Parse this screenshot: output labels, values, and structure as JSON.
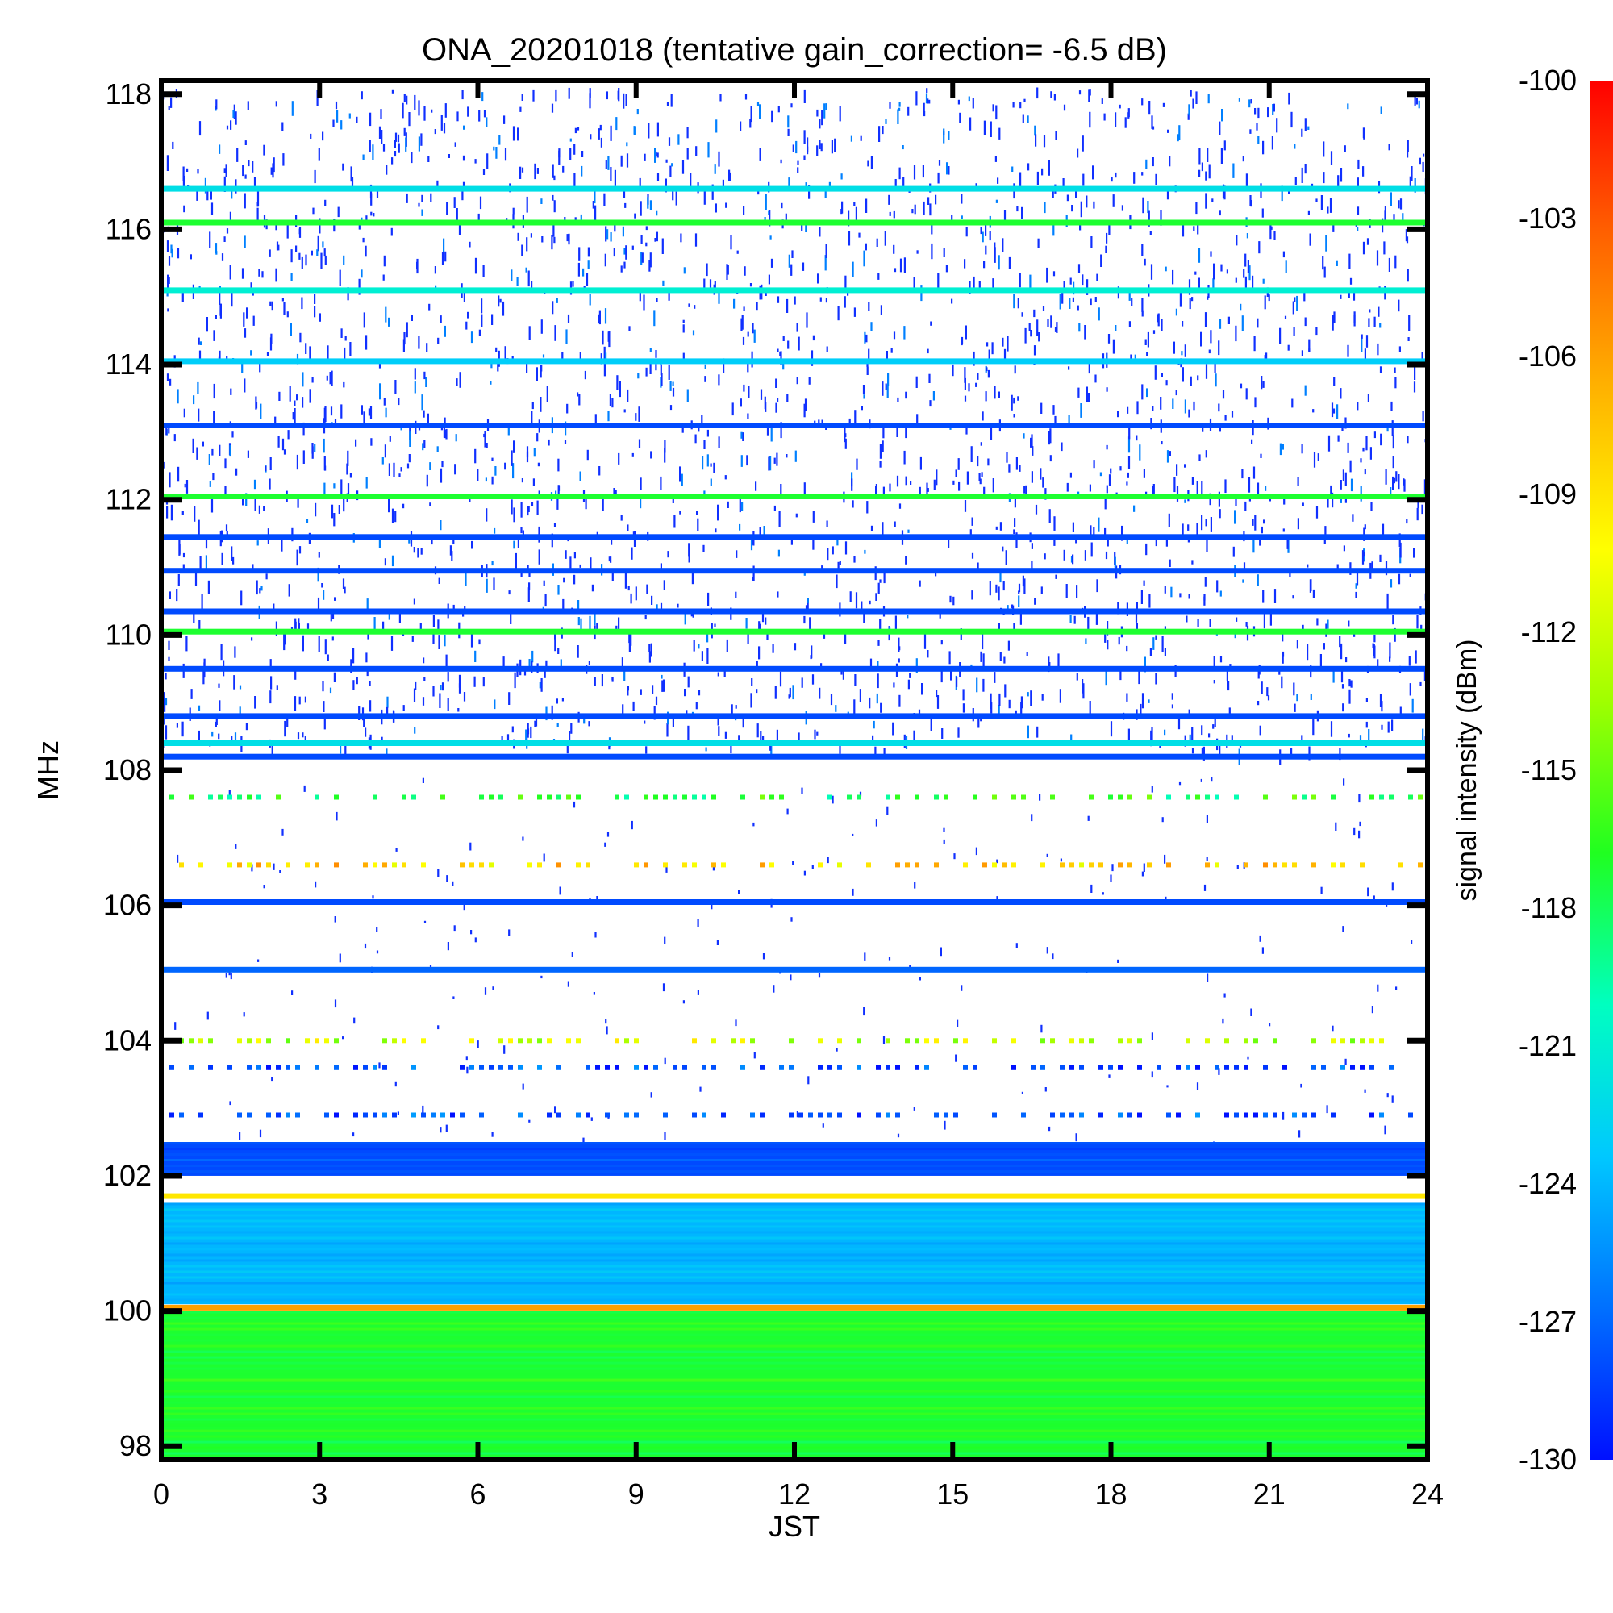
{
  "chart_data": {
    "type": "heatmap",
    "title": "ONA_20201018 (tentative gain_correction= -6.5 dB)",
    "xlabel": "JST",
    "ylabel": "MHz",
    "xlim": [
      0,
      24
    ],
    "ylim": [
      97.8,
      118.2
    ],
    "x_ticks": [
      "0",
      "3",
      "6",
      "9",
      "12",
      "15",
      "18",
      "21",
      "24"
    ],
    "y_ticks": [
      "98",
      "100",
      "102",
      "104",
      "106",
      "108",
      "110",
      "112",
      "114",
      "116",
      "118"
    ],
    "colorbar": {
      "label": "signal intensity (dBm)",
      "range": [
        -130,
        -100
      ],
      "ticks": [
        "-100",
        "-103",
        "-106",
        "-109",
        "-112",
        "-115",
        "-118",
        "-121",
        "-124",
        "-127",
        "-130"
      ],
      "colors": [
        "#0010ff",
        "#0070ff",
        "#00c8ff",
        "#00ffc0",
        "#20ff20",
        "#a0ff00",
        "#ffff00",
        "#ffb000",
        "#ff6000",
        "#ff0000"
      ]
    },
    "persistent_signals": [
      {
        "freq_mhz": 116.6,
        "dbm": -122
      },
      {
        "freq_mhz": 116.1,
        "dbm": -117
      },
      {
        "freq_mhz": 115.1,
        "dbm": -121
      },
      {
        "freq_mhz": 114.05,
        "dbm": -123
      },
      {
        "freq_mhz": 113.1,
        "dbm": -128
      },
      {
        "freq_mhz": 112.05,
        "dbm": -117
      },
      {
        "freq_mhz": 111.45,
        "dbm": -128
      },
      {
        "freq_mhz": 110.95,
        "dbm": -128
      },
      {
        "freq_mhz": 110.35,
        "dbm": -128
      },
      {
        "freq_mhz": 110.05,
        "dbm": -117
      },
      {
        "freq_mhz": 109.5,
        "dbm": -128
      },
      {
        "freq_mhz": 108.8,
        "dbm": -128
      },
      {
        "freq_mhz": 108.4,
        "dbm": -122
      },
      {
        "freq_mhz": 108.2,
        "dbm": -128
      },
      {
        "freq_mhz": 106.05,
        "dbm": -128
      },
      {
        "freq_mhz": 105.05,
        "dbm": -127
      },
      {
        "freq_mhz": 101.7,
        "dbm": -109
      },
      {
        "freq_mhz": 100.05,
        "dbm": -106
      }
    ],
    "intermittent_signals": [
      {
        "freq_mhz": 107.6,
        "dbm": -117
      },
      {
        "freq_mhz": 106.6,
        "dbm": -108
      },
      {
        "freq_mhz": 104.0,
        "dbm": -112
      },
      {
        "freq_mhz": 103.6,
        "dbm": -128
      },
      {
        "freq_mhz": 102.9,
        "dbm": -128
      }
    ],
    "noise_floor_bands": [
      {
        "from_mhz": 102.0,
        "to_mhz": 102.5,
        "dbm": -128
      },
      {
        "from_mhz": 100.1,
        "to_mhz": 101.6,
        "dbm": -124
      },
      {
        "from_mhz": 97.8,
        "to_mhz": 100.0,
        "dbm": -117
      }
    ]
  }
}
